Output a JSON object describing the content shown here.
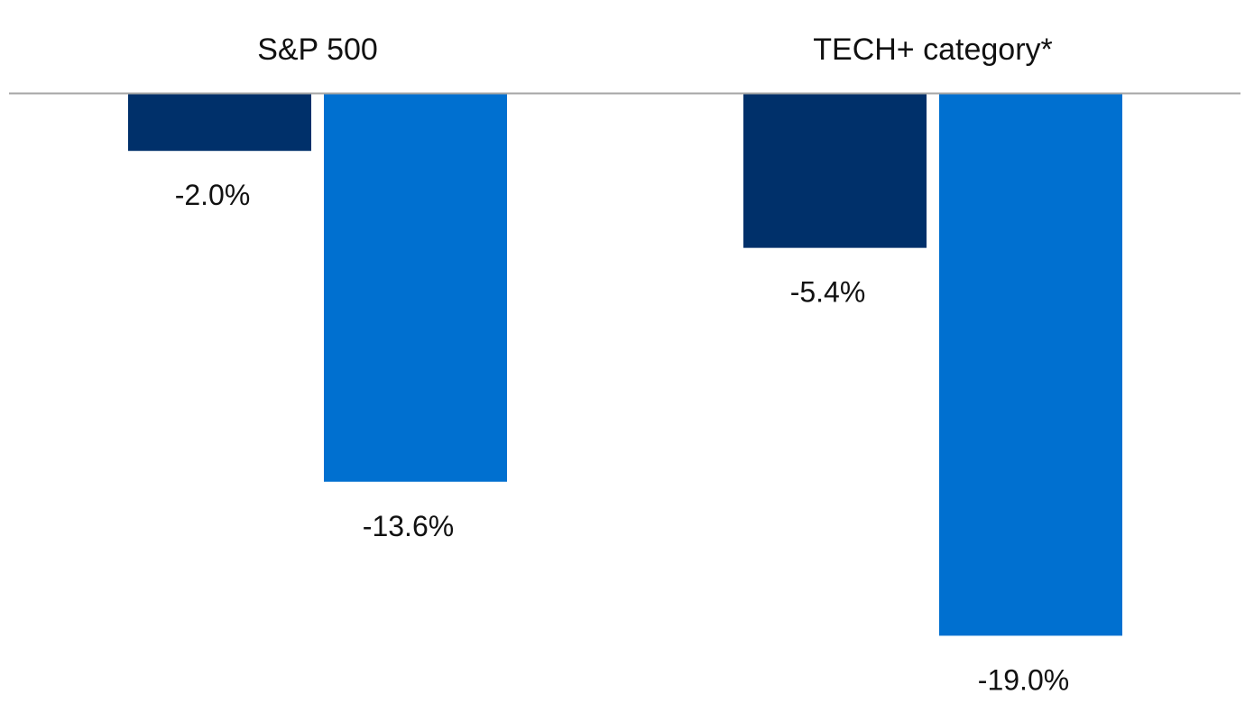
{
  "chart_data": {
    "type": "bar",
    "categories": [
      "S&P 500",
      "TECH+ category*"
    ],
    "series": [
      {
        "values": [
          -2.0,
          -5.4
        ]
      },
      {
        "values": [
          -13.6,
          -19.0
        ]
      }
    ],
    "value_labels": [
      [
        "-2.0%",
        "-5.4%"
      ],
      [
        "-13.6%",
        "-19.0%"
      ]
    ],
    "colors": [
      "#00306A",
      "#0070D0"
    ],
    "axis_color": "#A6A6A6",
    "ylim": [
      -20,
      0
    ],
    "category_label_position": "top",
    "grid": false,
    "legend": false
  }
}
